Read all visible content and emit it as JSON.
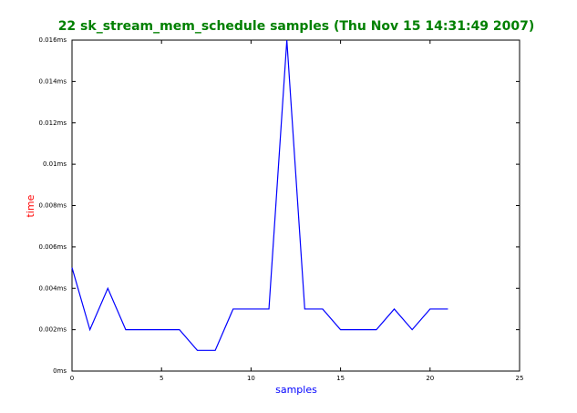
{
  "chart_data": {
    "type": "line",
    "title": "22 sk_stream_mem_schedule samples (Thu Nov 15 14:31:49 2007)",
    "x_label": "samples",
    "y_label": "time",
    "x": [
      0,
      1,
      2,
      3,
      4,
      5,
      6,
      7,
      8,
      9,
      10,
      11,
      12,
      13,
      14,
      15,
      16,
      17,
      18,
      19,
      20,
      21
    ],
    "series": [
      {
        "color": "#0000ff",
        "values": [
          0.005,
          0.002,
          0.004,
          0.002,
          0.002,
          0.002,
          0.002,
          0.001,
          0.001,
          0.003,
          0.003,
          0.003,
          0.016,
          0.003,
          0.003,
          0.002,
          0.002,
          0.002,
          0.003,
          0.002,
          0.003,
          0.003
        ]
      }
    ],
    "xlim": [
      0,
      25
    ],
    "xticks": [
      0,
      5,
      10,
      15,
      20,
      25
    ],
    "ylim": [
      0,
      0.016
    ],
    "yticks": [
      {
        "value": 0,
        "label": "0ms"
      },
      {
        "value": 0.002,
        "label": "0.002ms"
      },
      {
        "value": 0.004,
        "label": "0.004ms"
      },
      {
        "value": 0.006,
        "label": "0.006ms"
      },
      {
        "value": 0.008,
        "label": "0.008ms"
      },
      {
        "value": 0.01,
        "label": "0.01ms"
      },
      {
        "value": 0.012,
        "label": "0.012ms"
      },
      {
        "value": 0.014,
        "label": "0.014ms"
      },
      {
        "value": 0.016,
        "label": "0.016ms"
      }
    ],
    "grid": false
  }
}
